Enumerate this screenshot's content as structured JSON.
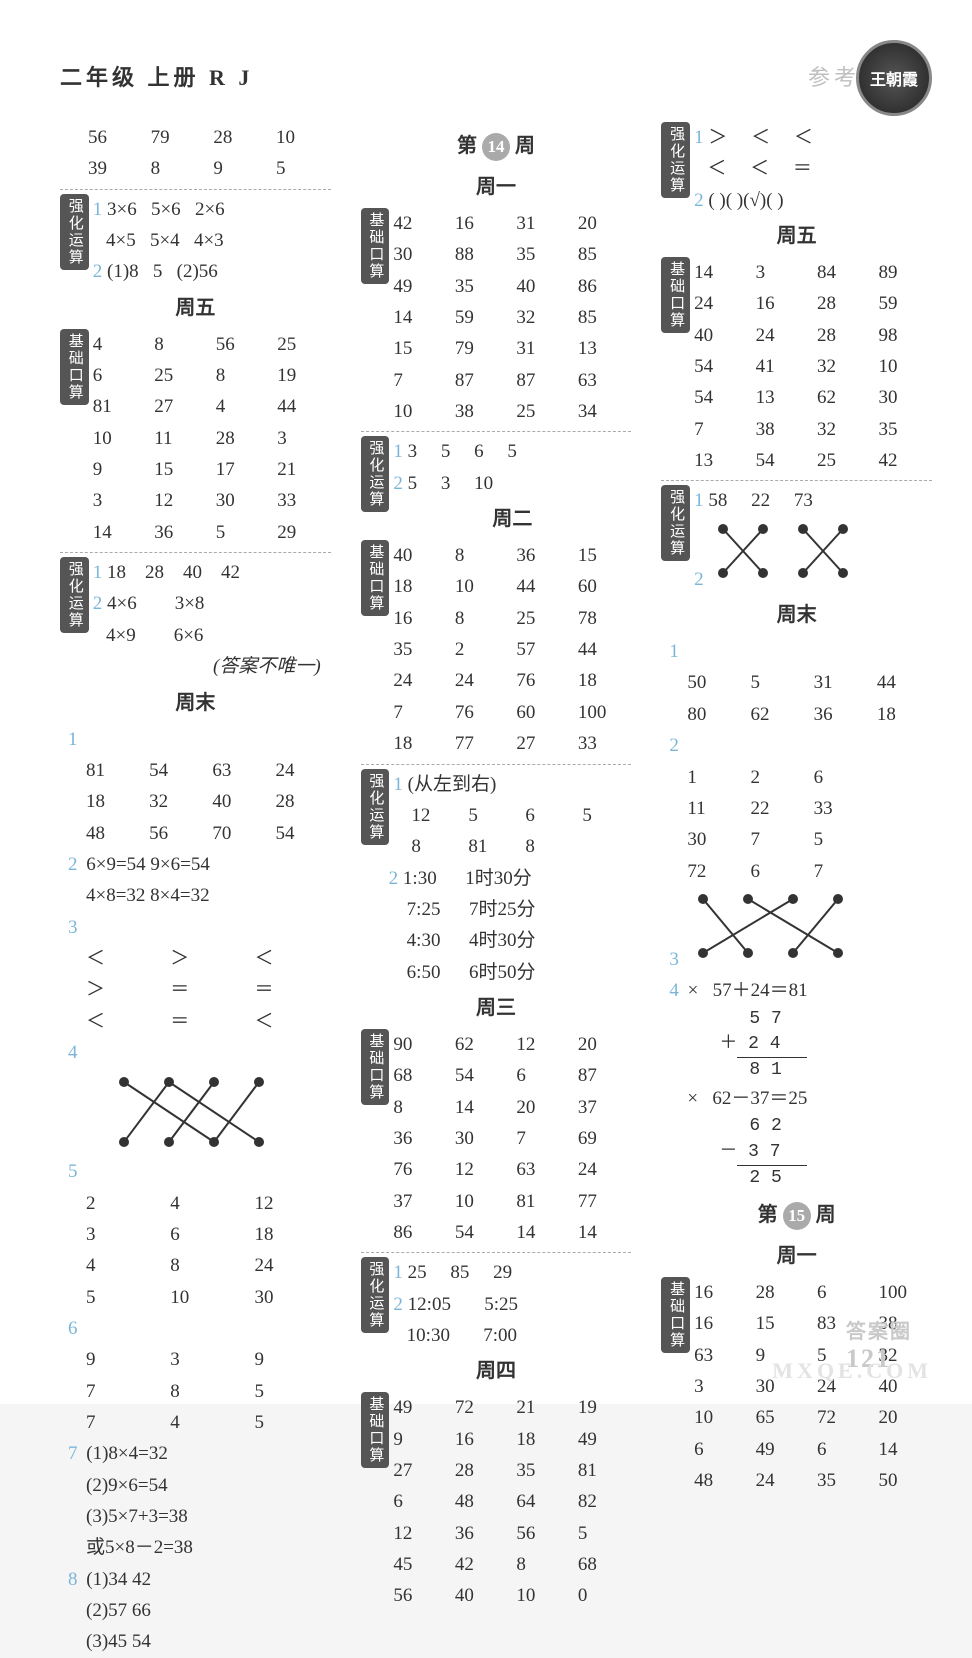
{
  "header": {
    "left": "二年级 上册 R J",
    "right": "参考答案",
    "logo": "王朝霞"
  },
  "page_number": "121",
  "watermark_top": "答案圈",
  "watermark_bottom": "MXQE.COM",
  "col1": {
    "top_grid": [
      "56",
      "79",
      "28",
      "10",
      "39",
      "8",
      "9",
      "5"
    ],
    "qh1": {
      "label": "强化运算",
      "rows": [
        {
          "n": "1",
          "cells": [
            "3×6",
            "5×6",
            "2×6",
            "4×5",
            "5×4",
            "4×3"
          ]
        },
        {
          "n": "2",
          "cells": [
            "(1)8",
            "5",
            "(2)56",
            ""
          ]
        }
      ]
    },
    "day5": "周五",
    "jc1": {
      "label": "基础口算",
      "grid": [
        "4",
        "8",
        "56",
        "25",
        "6",
        "25",
        "8",
        "19",
        "81",
        "27",
        "4",
        "44",
        "10",
        "11",
        "28",
        "3",
        "9",
        "15",
        "17",
        "21",
        "3",
        "12",
        "30",
        "33",
        "14",
        "36",
        "5",
        "29"
      ]
    },
    "qh2": {
      "label": "强化运算",
      "rows": [
        {
          "n": "1",
          "cells": [
            "18",
            "28",
            "40",
            "42"
          ]
        },
        {
          "n": "2",
          "cells": [
            "4×6",
            "",
            "3×8",
            "",
            "4×9",
            "",
            "6×6",
            ""
          ]
        }
      ]
    },
    "note": "(答案不唯一)",
    "weekend": "周末",
    "we_items": [
      {
        "n": "1",
        "grid": [
          "81",
          "54",
          "63",
          "24",
          "18",
          "32",
          "40",
          "28",
          "48",
          "56",
          "70",
          "54"
        ]
      },
      {
        "n": "2",
        "lines": [
          "6×9=54  9×6=54",
          "4×8=32  8×4=32"
        ]
      },
      {
        "n": "3",
        "grid": [
          "＜",
          "＞",
          "＜",
          "＞",
          "＝",
          "＝",
          "＜",
          "＝",
          "＜"
        ]
      },
      {
        "n": "4",
        "svg": "cross_a"
      },
      {
        "n": "5",
        "grid": [
          "2",
          "4",
          "12",
          "3",
          "6",
          "18",
          "4",
          "8",
          "24",
          "5",
          "10",
          "30"
        ]
      },
      {
        "n": "6",
        "grid": [
          "9",
          "3",
          "9",
          "7",
          "8",
          "5",
          "7",
          "4",
          "5"
        ]
      },
      {
        "n": "7",
        "lines": [
          "(1)8×4=32",
          "(2)9×6=54",
          "(3)5×7+3=38",
          "或5×8－2=38"
        ]
      },
      {
        "n": "8",
        "lines": [
          "(1)34    42",
          "(2)57    66",
          "(3)45    54"
        ]
      }
    ]
  },
  "col2": {
    "week": "第",
    "weeknum": "14",
    "weeksuf": "周",
    "day1": "周一",
    "jc_d1": {
      "label": "基础口算",
      "grid": [
        "42",
        "16",
        "31",
        "20",
        "30",
        "88",
        "35",
        "85",
        "49",
        "35",
        "40",
        "86",
        "14",
        "59",
        "32",
        "85",
        "15",
        "79",
        "31",
        "13",
        "7",
        "87",
        "87",
        "63",
        "10",
        "38",
        "25",
        "34"
      ]
    },
    "qh_d1": {
      "label": "强化运算",
      "rows": [
        {
          "n": "1",
          "cells": [
            "3",
            "5",
            "6",
            "5"
          ]
        },
        {
          "n": "2",
          "cells": [
            "5",
            "3",
            "10",
            ""
          ]
        }
      ]
    },
    "day2": "周二",
    "jc_d2": {
      "label": "基础口算",
      "grid": [
        "40",
        "8",
        "36",
        "15",
        "18",
        "10",
        "44",
        "60",
        "16",
        "8",
        "25",
        "78",
        "35",
        "2",
        "57",
        "44",
        "24",
        "24",
        "76",
        "18",
        "7",
        "76",
        "60",
        "100",
        "18",
        "77",
        "27",
        "33"
      ]
    },
    "qh_d2": {
      "label": "强化运算",
      "rows": [
        {
          "n": "1",
          "header": "(从左到右)",
          "cells": [
            "12",
            "5",
            "6",
            "5",
            "8",
            "81",
            "8",
            ""
          ]
        },
        {
          "n": "2",
          "time_pairs": [
            [
              "1:30",
              "1时30分"
            ],
            [
              "7:25",
              "7时25分"
            ],
            [
              "4:30",
              "4时30分"
            ],
            [
              "6:50",
              "6时50分"
            ]
          ]
        }
      ]
    },
    "day3": "周三",
    "jc_d3": {
      "label": "基础口算",
      "grid": [
        "90",
        "62",
        "12",
        "20",
        "68",
        "54",
        "6",
        "87",
        "8",
        "14",
        "20",
        "37",
        "36",
        "30",
        "7",
        "69",
        "76",
        "12",
        "63",
        "24",
        "37",
        "10",
        "81",
        "77",
        "86",
        "54",
        "14",
        "14"
      ]
    },
    "qh_d3": {
      "label": "强化运算",
      "rows": [
        {
          "n": "1",
          "cells": [
            "25",
            "85",
            "29",
            ""
          ]
        },
        {
          "n": "2",
          "time_pairs": [
            [
              "12:05",
              "5:25"
            ],
            [
              "10:30",
              "7:00"
            ]
          ]
        }
      ]
    },
    "day4": "周四",
    "jc_d4": {
      "label": "基础口算",
      "grid": [
        "49",
        "72",
        "21",
        "19",
        "9",
        "16",
        "18",
        "49",
        "27",
        "28",
        "35",
        "81",
        "6",
        "48",
        "64",
        "82",
        "12",
        "36",
        "56",
        "5",
        "45",
        "42",
        "8",
        "68",
        "56",
        "40",
        "10",
        "0"
      ]
    }
  },
  "col3": {
    "qh_top": {
      "label": "强化运算",
      "rows": [
        {
          "n": "1",
          "cells": [
            "＞",
            "＜",
            "＜",
            "＜",
            "＜",
            "＝"
          ]
        },
        {
          "n": "2",
          "cells": [
            "(    )(    )(√)(    )"
          ]
        }
      ]
    },
    "day5": "周五",
    "jc_d5": {
      "label": "基础口算",
      "grid": [
        "14",
        "3",
        "84",
        "89",
        "24",
        "16",
        "28",
        "59",
        "40",
        "24",
        "28",
        "98",
        "54",
        "41",
        "32",
        "10",
        "54",
        "13",
        "62",
        "30",
        "7",
        "38",
        "32",
        "35",
        "13",
        "54",
        "25",
        "42"
      ]
    },
    "qh_d5": {
      "label": "强化运算",
      "rows": [
        {
          "n": "1",
          "cells": [
            "58",
            "22",
            "73"
          ]
        },
        {
          "n": "2",
          "svg": "cross_b"
        }
      ]
    },
    "weekend": "周末",
    "we": [
      {
        "n": "1",
        "grid": [
          "50",
          "5",
          "31",
          "44",
          "80",
          "62",
          "36",
          "18"
        ]
      },
      {
        "n": "2",
        "grid": [
          "1",
          "2",
          "6",
          "",
          "11",
          "22",
          "33",
          "",
          "30",
          "7",
          "5",
          "",
          "72",
          "6",
          "7",
          ""
        ]
      },
      {
        "n": "3",
        "svg": "cross_c"
      },
      {
        "n": "4",
        "vcalc": true
      }
    ],
    "vcalc": {
      "add": {
        "sym": "×",
        "title": "57＋24＝81",
        "r1": "5  7",
        "r2": "＋  2  4",
        "res": "8  1"
      },
      "sub": {
        "sym": "×",
        "title": "62－37＝25",
        "r1": "6  2",
        "r2": "－  3  7",
        "res": "2  5"
      }
    },
    "week": "第",
    "weeknum": "15",
    "weeksuf": "周",
    "day1": "周一",
    "jc_d1": {
      "label": "基础口算",
      "grid": [
        "16",
        "28",
        "6",
        "100",
        "16",
        "15",
        "83",
        "38",
        "63",
        "9",
        "5",
        "32",
        "3",
        "30",
        "24",
        "40",
        "10",
        "65",
        "72",
        "20",
        "6",
        "49",
        "6",
        "14",
        "48",
        "24",
        "35",
        "50"
      ]
    }
  }
}
